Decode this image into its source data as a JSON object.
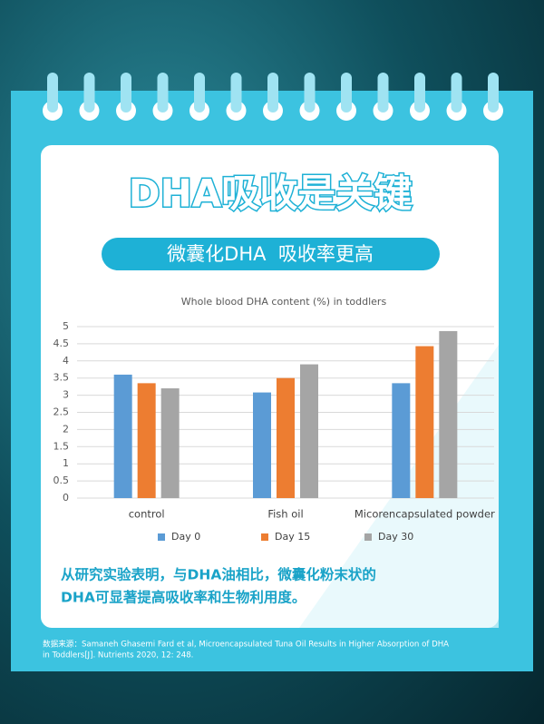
{
  "header": {
    "title": "DHA吸收是关键",
    "subtitle": "微囊化DHA  吸收率更高"
  },
  "chart_data": {
    "type": "bar",
    "title": "Whole blood DHA content (%) in toddlers",
    "categories": [
      "control",
      "Fish oil",
      "Micorencapsulated powder"
    ],
    "series": [
      {
        "name": "Day 0",
        "color": "#5b9bd5",
        "values": [
          3.6,
          3.08,
          3.35
        ]
      },
      {
        "name": "Day 15",
        "color": "#ed7d31",
        "values": [
          3.35,
          3.5,
          4.43
        ]
      },
      {
        "name": "Day 30",
        "color": "#a5a5a5",
        "values": [
          3.2,
          3.9,
          4.87
        ]
      }
    ],
    "ylim": [
      0,
      5
    ],
    "yticks": [
      0,
      0.5,
      1,
      1.5,
      2,
      2.5,
      3,
      3.5,
      4,
      4.5,
      5
    ],
    "grid": true,
    "legend": "bottom"
  },
  "conclusion": [
    "从研究实验表明，与DHA油相比，微囊化粉末状的",
    "DHA可显著提高吸收率和生物利用度。"
  ],
  "source": [
    "数据来源：Samaneh Ghasemi Fard et al, Microencapsulated Tuna Oil Results in Higher Absorption of DHA",
    "in Toddlers[J]. Nutrients 2020, 12: 248."
  ]
}
